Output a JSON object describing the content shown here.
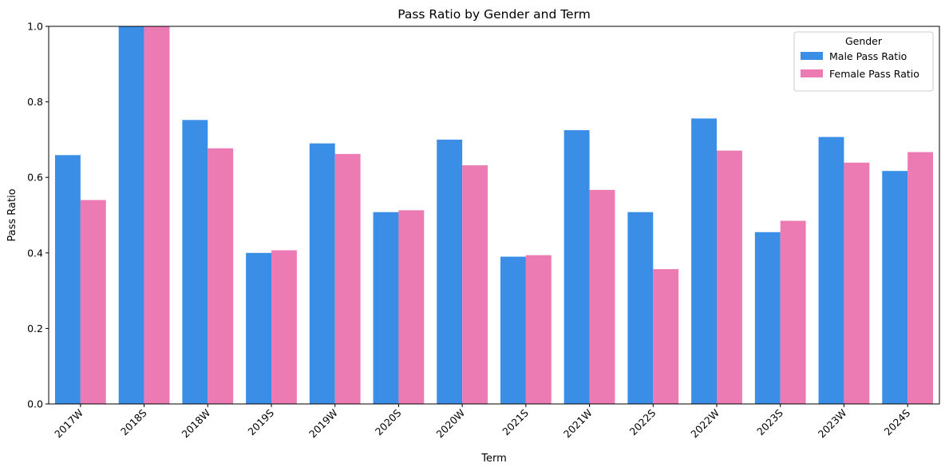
{
  "chart_data": {
    "type": "bar",
    "title": "Pass Ratio by Gender and Term",
    "xlabel": "Term",
    "ylabel": "Pass Ratio",
    "ylim": [
      0,
      1.0
    ],
    "yticks": [
      "0.0",
      "0.2",
      "0.4",
      "0.6",
      "0.8",
      "1.0"
    ],
    "grid": false,
    "legend": {
      "title": "Gender",
      "placement": "top-right"
    },
    "categories": [
      "2017W",
      "2018S",
      "2018W",
      "2019S",
      "2019W",
      "2020S",
      "2020W",
      "2021S",
      "2021W",
      "2022S",
      "2022W",
      "2023S",
      "2023W",
      "2024S"
    ],
    "series": [
      {
        "name": "Male Pass Ratio",
        "color": "#3a8ee6",
        "values": [
          0.659,
          1.0,
          0.752,
          0.4,
          0.69,
          0.508,
          0.7,
          0.39,
          0.725,
          0.508,
          0.756,
          0.455,
          0.707,
          0.617
        ]
      },
      {
        "name": "Female Pass Ratio",
        "color": "#ec7bb4",
        "values": [
          0.54,
          1.0,
          0.677,
          0.407,
          0.662,
          0.513,
          0.632,
          0.394,
          0.567,
          0.357,
          0.671,
          0.485,
          0.639,
          0.667
        ]
      }
    ]
  }
}
